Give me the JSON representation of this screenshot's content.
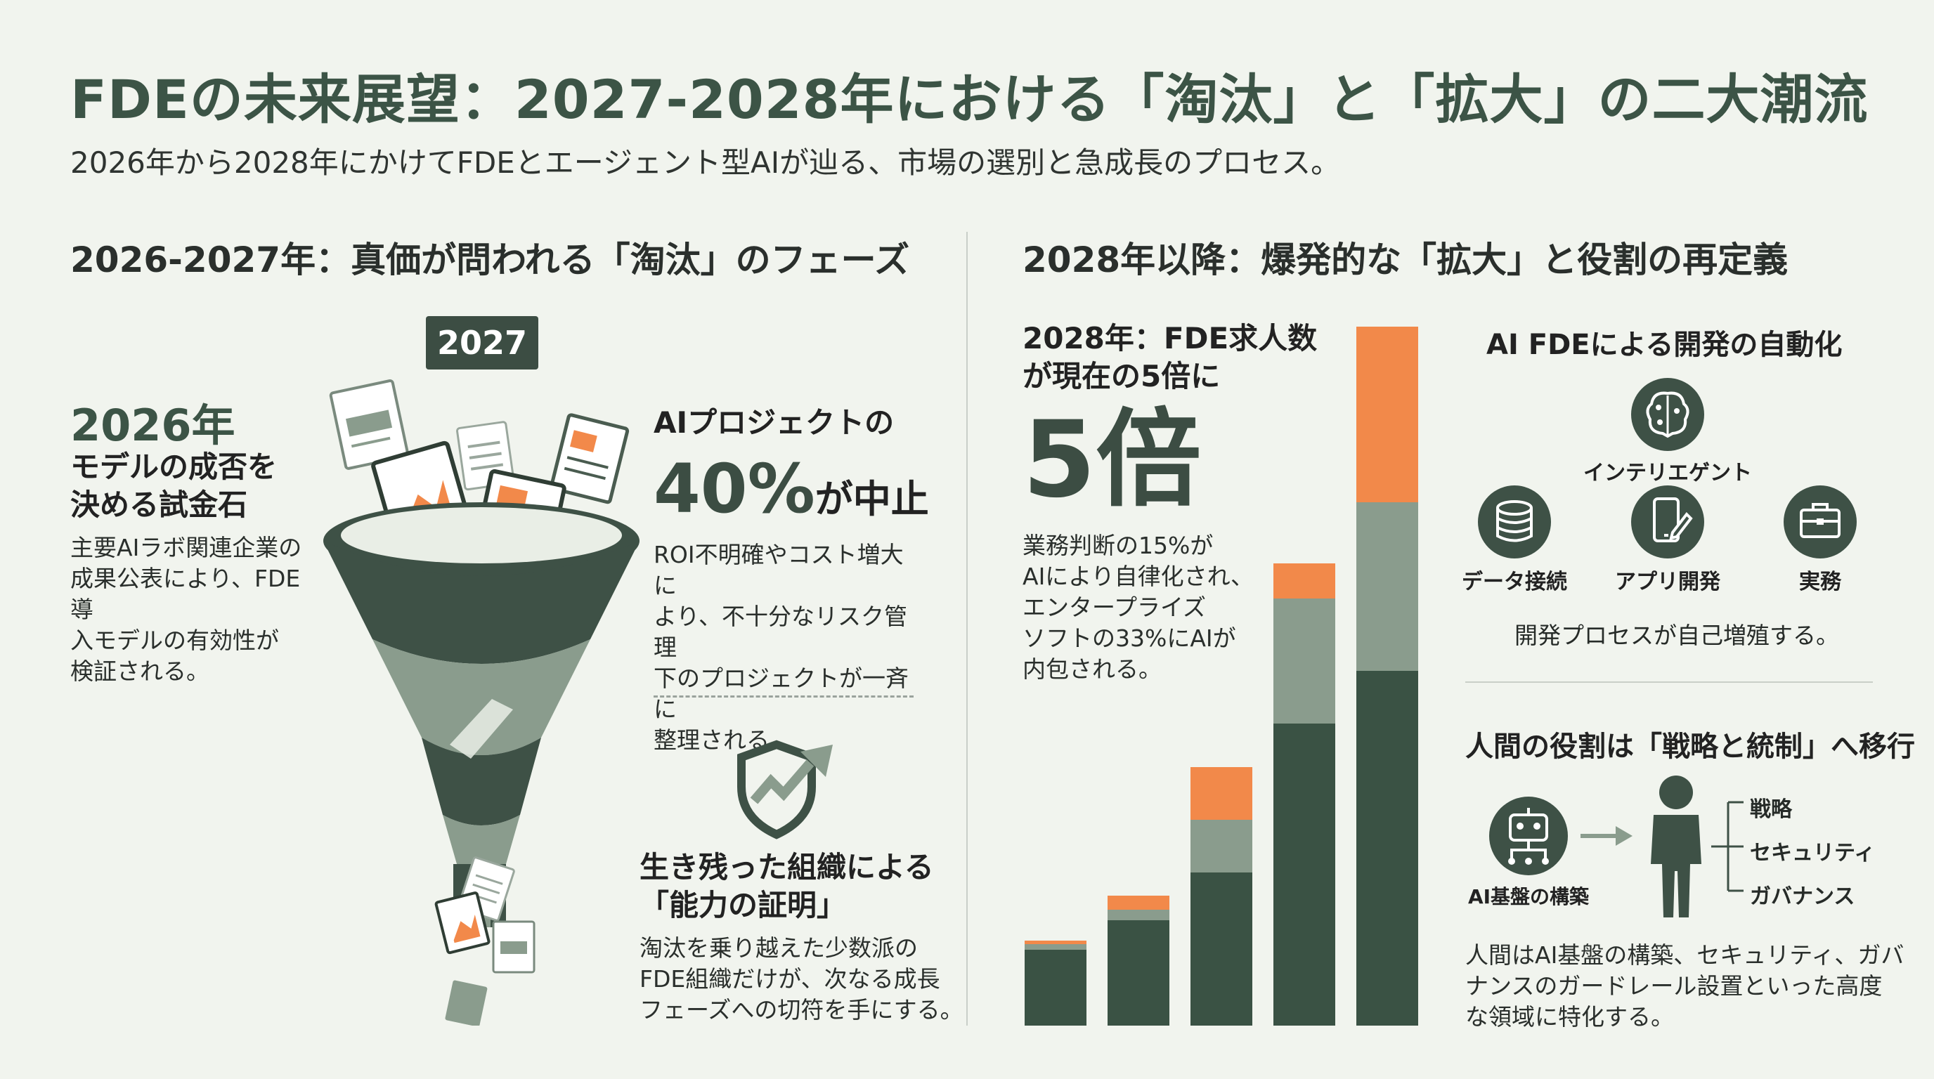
{
  "header": {
    "title": "FDEの未来展望：2027-2028年における「淘汰」と「拡大」の二大潮流",
    "subtitle": "2026年から2028年にかけてFDEとエージェント型AIが辿る、市場の選別と急成長のプロセス。"
  },
  "left": {
    "heading": "2026-2027年：真価が問われる「淘汰」のフェーズ",
    "badge": "2027",
    "year_2026": {
      "year": "2026年",
      "title_line1": "モデルの成否を",
      "title_line2": "決める試金石",
      "body": [
        "主要AIラボ関連企業の",
        "成果公表により、FDE導",
        "入モデルの有効性が",
        "検証される。"
      ]
    },
    "cancel": {
      "title": "AIプロジェクトの",
      "big_pct": "40%",
      "big_suffix": "が中止",
      "body": [
        "ROI不明確やコスト増大に",
        "より、不十分なリスク管理",
        "下のプロジェクトが一斉に",
        "整理される。"
      ]
    },
    "survivors": {
      "title_line1": "生き残った組織による",
      "title_line2": "「能力の証明」",
      "body": [
        "淘汰を乗り越えた少数派の",
        "FDE組織だけが、次なる成長",
        "フェーズへの切符を手にする。"
      ]
    }
  },
  "right": {
    "heading": "2028年以降：爆発的な「拡大」と役割の再定義",
    "jobs": {
      "title_line1": "2028年：FDE求人数",
      "title_line2": "が現在の5倍に",
      "big": "5倍",
      "body": [
        "業務判断の15%が",
        "AIにより自律化され、",
        "エンタープライズ",
        "ソフトの33%にAIが",
        "内包される。"
      ]
    },
    "automation": {
      "title": "AI FDEによる開発の自動化",
      "icons": {
        "intelligent": "インテリエゲント",
        "data": "データ接続",
        "app": "アプリ開発",
        "work": "実務"
      },
      "caption": "開発プロセスが自己増殖する。"
    },
    "human": {
      "title": "人間の役割は「戦略と統制」へ移行",
      "ai_label": "AI基盤の構築",
      "roles": [
        "戦略",
        "セキュリティ",
        "ガバナンス"
      ],
      "body": [
        "人間はAI基盤の構築、セキュリティ、ガバ",
        "ナンスのガードレール設置といった高度",
        "な領域に特化する。"
      ]
    }
  },
  "colors": {
    "dark": "#3a5244",
    "mid": "#8a9c8d",
    "orange": "#f2894a",
    "title": "#3c5446"
  },
  "chart_data": {
    "type": "bar",
    "stacked": true,
    "categories": [
      "",
      "",
      "",
      "",
      ""
    ],
    "series": [
      {
        "values": [
          108,
          150,
          218,
          430,
          505
        ]
      },
      {
        "values": [
          8,
          15,
          75,
          178,
          240
        ]
      },
      {
        "values": [
          5,
          20,
          75,
          50,
          250
        ]
      }
    ],
    "ylim": [
      0,
      1000
    ],
    "title": "",
    "xlabel": "",
    "ylabel": "",
    "grid": false
  }
}
